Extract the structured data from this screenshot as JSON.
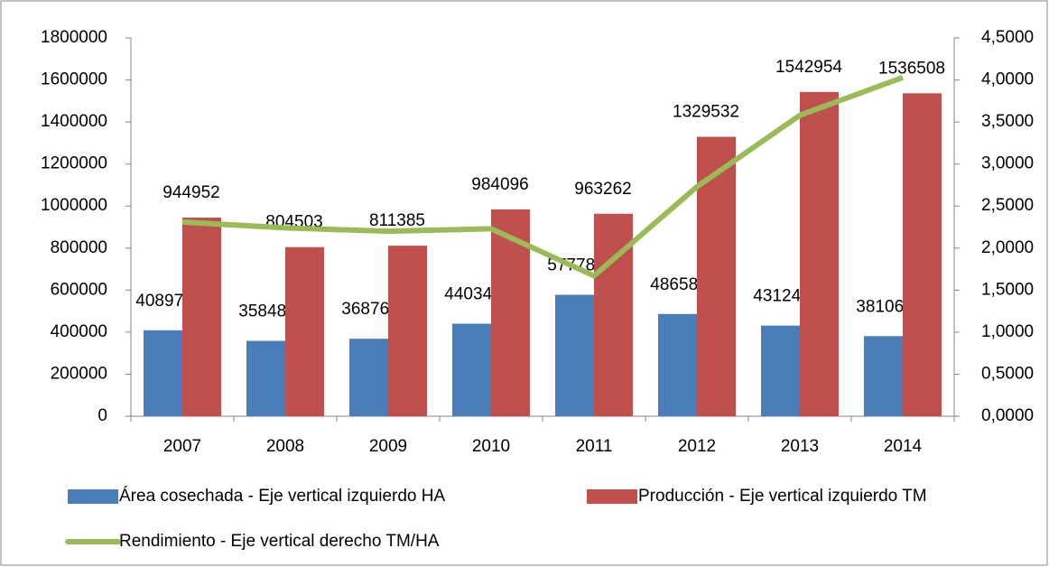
{
  "chart_data": {
    "type": "bar",
    "categories": [
      "2007",
      "2008",
      "2009",
      "2010",
      "2011",
      "2012",
      "2013",
      "2014"
    ],
    "series": [
      {
        "name": "Área cosechada - Eje vertical izquierdo HA",
        "color": "#4a7ebb",
        "type": "bar",
        "values": [
          408976,
          358480,
          368769,
          440346,
          577784,
          486580,
          431241,
          381066
        ]
      },
      {
        "name": "Producción - Eje vertical izquierdo TM",
        "color": "#c0504d",
        "type": "bar",
        "values": [
          944952,
          804503,
          811385,
          984096,
          963262,
          1329532,
          1542954,
          1536508
        ]
      },
      {
        "name": "Rendimiento - Eje vertical derecho TM/HA",
        "color": "#9bbb59",
        "type": "line",
        "axis": "y2",
        "values": [
          2.31,
          2.24,
          2.2,
          2.23,
          1.67,
          2.73,
          3.58,
          4.03
        ]
      }
    ],
    "ylim": [
      0,
      1800000
    ],
    "yticks": [
      0,
      200000,
      400000,
      600000,
      800000,
      1000000,
      1200000,
      1400000,
      1600000,
      1800000
    ],
    "y2lim": [
      0,
      4.5
    ],
    "y2ticks": [
      {
        "value": 0,
        "label": "0,0000"
      },
      {
        "value": 0.5,
        "label": "0,5000"
      },
      {
        "value": 1,
        "label": "1,0000"
      },
      {
        "value": 1.5,
        "label": "1,5000"
      },
      {
        "value": 2,
        "label": "2,0000"
      },
      {
        "value": 2.5,
        "label": "2,5000"
      },
      {
        "value": 3,
        "label": "3,0000"
      },
      {
        "value": 3.5,
        "label": "3,5000"
      },
      {
        "value": 4,
        "label": "4,0000"
      },
      {
        "value": 4.5,
        "label": "4,5000"
      }
    ],
    "legend": "bottom",
    "grid": false
  }
}
